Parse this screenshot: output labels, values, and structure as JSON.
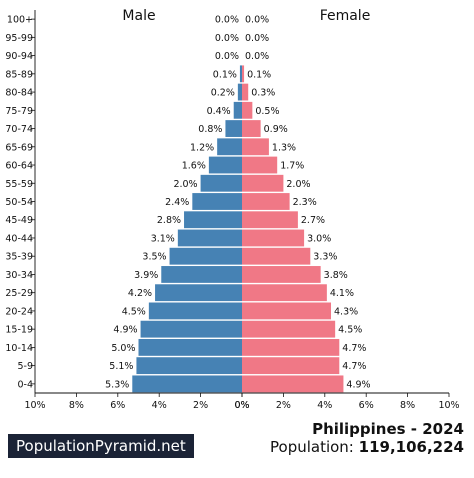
{
  "branding": {
    "site": "PopulationPyramid.net"
  },
  "footer": {
    "country_year": "Philippines - 2024",
    "population_label": "Population:",
    "population_value": "119,106,224"
  },
  "chart_data": {
    "type": "bar",
    "orientation": "horizontal",
    "layout": "population-pyramid",
    "side_titles": {
      "left": "Male",
      "right": "Female"
    },
    "categories": [
      "100+",
      "95-99",
      "90-94",
      "85-89",
      "80-84",
      "75-79",
      "70-74",
      "65-69",
      "60-64",
      "55-59",
      "50-54",
      "45-49",
      "40-44",
      "35-39",
      "30-34",
      "25-29",
      "20-24",
      "15-19",
      "10-14",
      "5-9",
      "0-4"
    ],
    "series": [
      {
        "name": "Male",
        "values": [
          0.0,
          0.0,
          0.0,
          0.1,
          0.2,
          0.4,
          0.8,
          1.2,
          1.6,
          2.0,
          2.4,
          2.8,
          3.1,
          3.5,
          3.9,
          4.2,
          4.5,
          4.9,
          5.0,
          5.1,
          5.3
        ],
        "labels": [
          "0.0%",
          "0.0%",
          "0.0%",
          "0.1%",
          "0.2%",
          "0.4%",
          "0.8%",
          "1.2%",
          "1.6%",
          "2.0%",
          "2.4%",
          "2.8%",
          "3.1%",
          "3.5%",
          "3.9%",
          "4.2%",
          "4.5%",
          "4.9%",
          "5.0%",
          "5.1%",
          "5.3%"
        ],
        "color": "#4682b4"
      },
      {
        "name": "Female",
        "values": [
          0.0,
          0.0,
          0.0,
          0.1,
          0.3,
          0.5,
          0.9,
          1.3,
          1.7,
          2.0,
          2.3,
          2.7,
          3.0,
          3.3,
          3.8,
          4.1,
          4.3,
          4.5,
          4.7,
          4.7,
          4.9
        ],
        "labels": [
          "0.0%",
          "0.0%",
          "0.0%",
          "0.1%",
          "0.3%",
          "0.5%",
          "0.9%",
          "1.3%",
          "1.7%",
          "2.0%",
          "2.3%",
          "2.7%",
          "3.0%",
          "3.3%",
          "3.8%",
          "4.1%",
          "4.3%",
          "4.5%",
          "4.7%",
          "4.7%",
          "4.9%"
        ],
        "color": "#f07886"
      }
    ],
    "xlim": [
      0,
      10
    ],
    "xticks": [
      "10%",
      "8%",
      "6%",
      "4%",
      "2%",
      "0%",
      "0%",
      "2%",
      "4%",
      "6%",
      "8%",
      "10%"
    ],
    "grid": false,
    "legend": "none"
  }
}
